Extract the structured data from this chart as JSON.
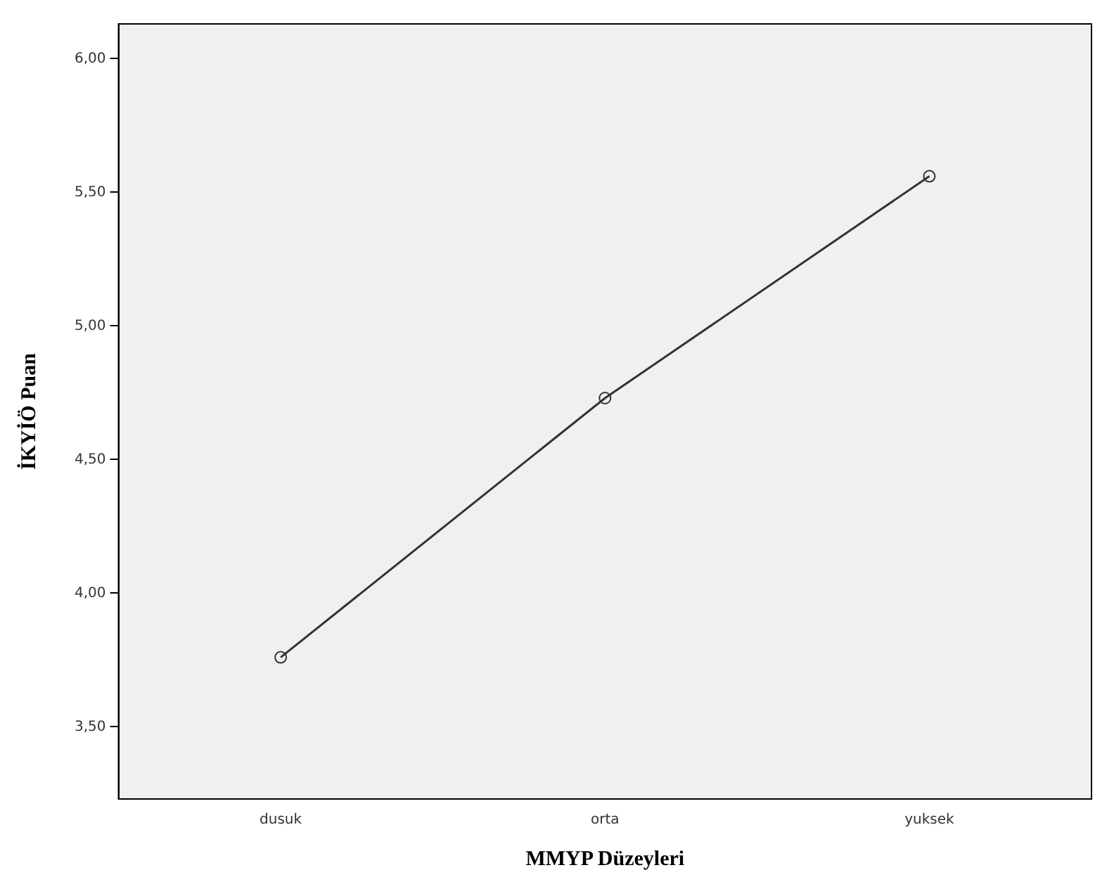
{
  "chart_data": {
    "type": "line",
    "xlabel": "MMYP Düzeyleri",
    "ylabel": "İKYİÖ Puan",
    "categories": [
      "dusuk",
      "orta",
      "yuksek"
    ],
    "series": [
      {
        "color": "#333333",
        "values": [
          3.76,
          4.73,
          5.56
        ]
      }
    ],
    "ylim": [
      3.23,
      6.13
    ],
    "yticks": [
      {
        "value": 3.5,
        "label": "3,50"
      },
      {
        "value": 4,
        "label": "4,00"
      },
      {
        "value": 4.5,
        "label": "4,50"
      },
      {
        "value": 5,
        "label": "5,00"
      },
      {
        "value": 5.5,
        "label": "5,50"
      },
      {
        "value": 6,
        "label": "6,00"
      }
    ],
    "grid": false,
    "legend": false,
    "marker": "circle",
    "line_style": "solid"
  }
}
